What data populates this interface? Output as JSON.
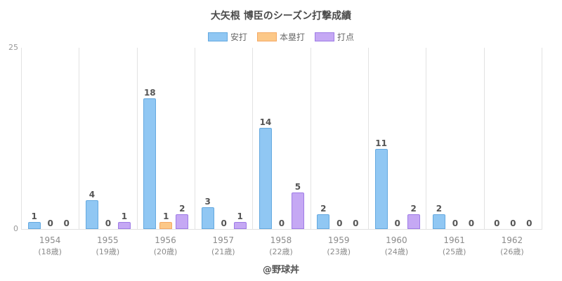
{
  "title": "大矢根 博臣のシーズン打撃成績",
  "footer": "@野球丼",
  "chart_data": {
    "type": "bar",
    "title": "大矢根 博臣のシーズン打撃成績",
    "categories": [
      "1954",
      "1955",
      "1956",
      "1957",
      "1958",
      "1959",
      "1960",
      "1961",
      "1962"
    ],
    "category_sub": [
      "(18歳)",
      "(19歳)",
      "(20歳)",
      "(21歳)",
      "(22歳)",
      "(23歳)",
      "(24歳)",
      "(25歳)",
      "(26歳)"
    ],
    "series": [
      {
        "name": "安打",
        "color": "#90c7f3",
        "border": "#64a9e0",
        "values": [
          1,
          4,
          18,
          3,
          14,
          2,
          11,
          2,
          0
        ]
      },
      {
        "name": "本塁打",
        "color": "#fcc888",
        "border": "#f5a965",
        "values": [
          0,
          0,
          1,
          0,
          0,
          0,
          0,
          0,
          0
        ]
      },
      {
        "name": "打点",
        "color": "#c5a8f4",
        "border": "#9e7ce6",
        "values": [
          0,
          1,
          2,
          1,
          5,
          0,
          2,
          0,
          0
        ]
      }
    ],
    "xlabel": "",
    "ylabel": "",
    "ylim": [
      0,
      25
    ],
    "yticks": [
      0,
      25
    ],
    "legend_position": "top",
    "grid": "vertical",
    "value_labels": true
  }
}
